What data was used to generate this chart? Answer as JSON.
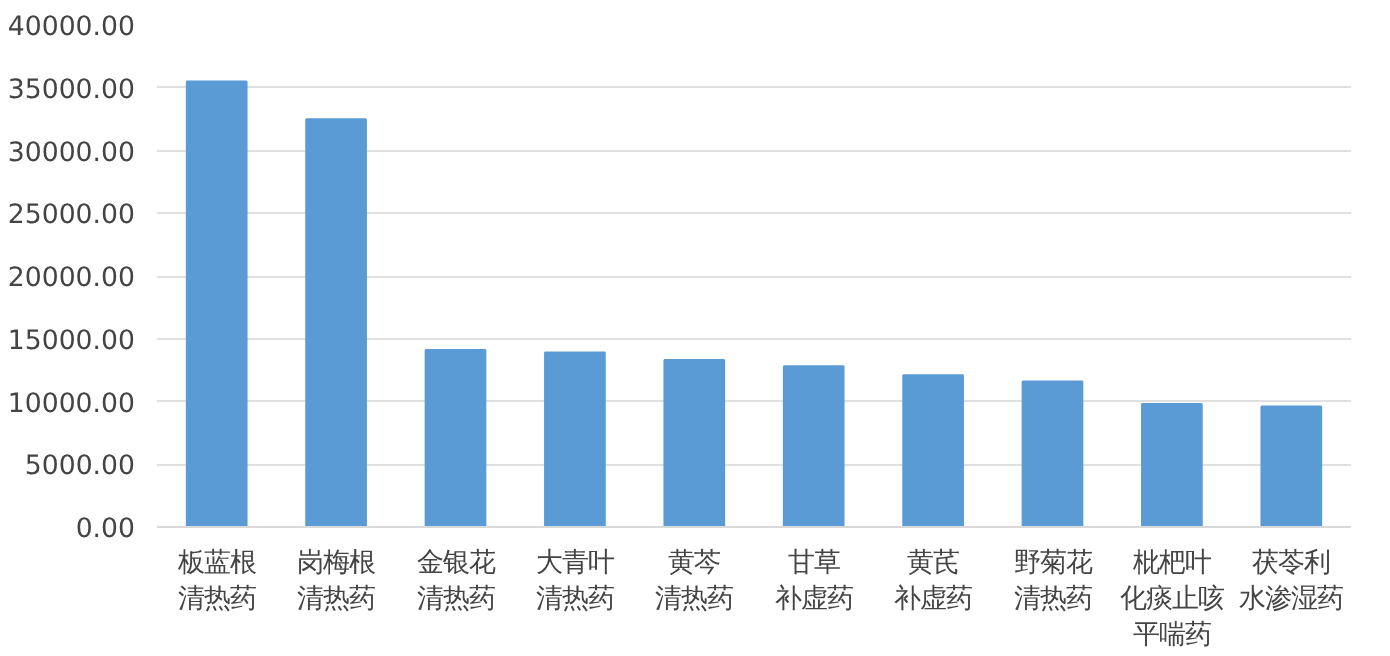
{
  "chart_data": {
    "type": "bar",
    "categories": [
      "板蓝根清热药",
      "岗梅根清热药",
      "金银花清热药",
      "大青叶清热药",
      "黄芩清热药",
      "甘草补虚药",
      "黄芪补虚药",
      "野菊花清热药",
      "枇杷叶化痰止咳平喘药",
      "茯苓利水渗湿药"
    ],
    "values": [
      35500,
      32500,
      14100,
      13900,
      13300,
      12800,
      12100,
      11600,
      9800,
      9600
    ],
    "color": "#5b9bd5",
    "ylim": [
      0,
      40000
    ],
    "yticks": [
      {
        "value": 0,
        "label": "0.00"
      },
      {
        "value": 5000,
        "label": "5000.00"
      },
      {
        "value": 10000,
        "label": "10000.00"
      },
      {
        "value": 15000,
        "label": "15000.00"
      },
      {
        "value": 20000,
        "label": "20000.00"
      },
      {
        "value": 25000,
        "label": "25000.00"
      },
      {
        "value": 30000,
        "label": "30000.00"
      },
      {
        "value": 35000,
        "label": "35000.00"
      },
      {
        "value": 40000,
        "label": "40000.00"
      }
    ],
    "grid": "y"
  }
}
